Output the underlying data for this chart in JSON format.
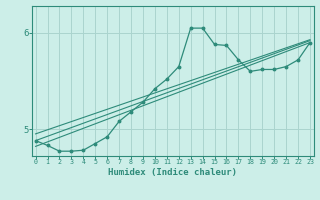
{
  "title": "",
  "xlabel": "Humidex (Indice chaleur)",
  "bg_color": "#cceee8",
  "grid_color": "#aad4ce",
  "line_color": "#2e8b7a",
  "xticks": [
    0,
    1,
    2,
    3,
    4,
    5,
    6,
    7,
    8,
    9,
    10,
    11,
    12,
    13,
    14,
    15,
    16,
    17,
    18,
    19,
    20,
    21,
    22,
    23
  ],
  "yticks": [
    5,
    6
  ],
  "xlim": [
    -0.3,
    23.3
  ],
  "ylim": [
    4.72,
    6.28
  ],
  "main_series": [
    4.88,
    4.83,
    4.77,
    4.77,
    4.78,
    4.85,
    4.92,
    5.08,
    5.18,
    5.28,
    5.42,
    5.52,
    5.65,
    6.05,
    6.05,
    5.88,
    5.87,
    5.72,
    5.6,
    5.62,
    5.62,
    5.65,
    5.72,
    5.9
  ],
  "linear_lines": [
    {
      "x0": 0,
      "y0": 4.82,
      "x1": 23,
      "y1": 5.9
    },
    {
      "x0": 0,
      "y0": 4.88,
      "x1": 23,
      "y1": 5.92
    },
    {
      "x0": 0,
      "y0": 4.95,
      "x1": 23,
      "y1": 5.93
    }
  ]
}
